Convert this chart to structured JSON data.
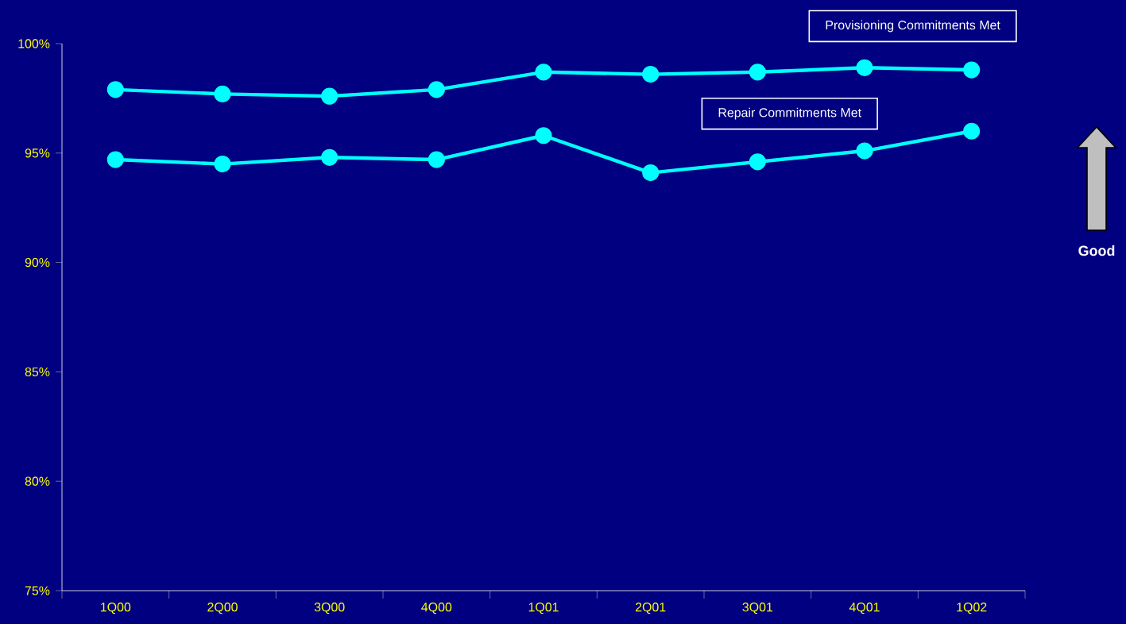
{
  "chart_data": {
    "type": "line",
    "categories": [
      "1Q00",
      "2Q00",
      "3Q00",
      "4Q00",
      "1Q01",
      "2Q01",
      "3Q01",
      "4Q01",
      "1Q02"
    ],
    "series": [
      {
        "name": "Provisioning Commitments Met",
        "color": "#00ffff",
        "values": [
          97.9,
          97.7,
          97.6,
          97.9,
          98.7,
          98.6,
          98.7,
          98.9,
          98.8
        ]
      },
      {
        "name": "Repair Commitments Met",
        "color": "#00ffff",
        "values": [
          94.7,
          94.5,
          94.8,
          94.7,
          95.8,
          94.1,
          94.6,
          95.1,
          96.0
        ]
      }
    ],
    "ylim": [
      75,
      100
    ],
    "yticks": [
      {
        "value": 75,
        "label": "75%"
      },
      {
        "value": 80,
        "label": "80%"
      },
      {
        "value": 85,
        "label": "85%"
      },
      {
        "value": 90,
        "label": "90%"
      },
      {
        "value": 95,
        "label": "95%"
      },
      {
        "value": 100,
        "label": "100%"
      }
    ],
    "marker": "circle",
    "line_style": "solid",
    "annotations": [
      "Good"
    ]
  }
}
